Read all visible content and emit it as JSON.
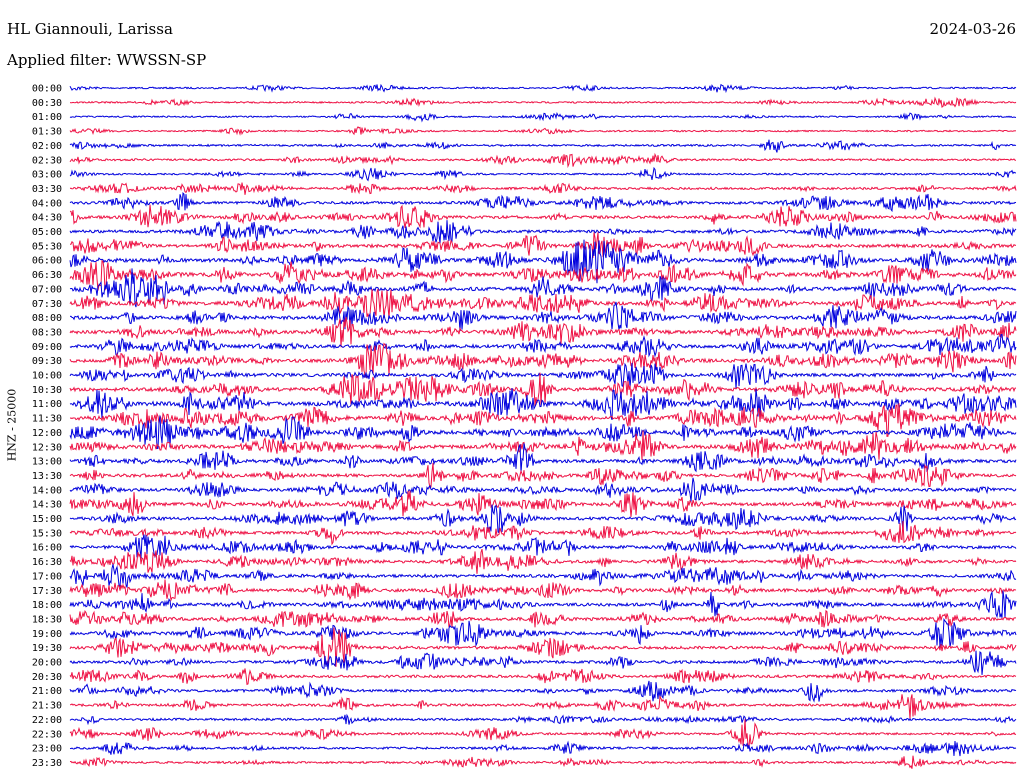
{
  "header": {
    "station": "HL Giannouli, Larissa",
    "date": "2024-03-26",
    "filter_label": "Applied filter: WWSSN-SP"
  },
  "colors": {
    "series_a": "#0000dd",
    "series_b": "#ee1144"
  },
  "chart_data": {
    "type": "line",
    "title": "HL Giannouli, Larissa",
    "ylabel": "HNZ - 25000",
    "row_labels": [
      "00:00",
      "00:30",
      "01:00",
      "01:30",
      "02:00",
      "02:30",
      "03:00",
      "03:30",
      "04:00",
      "04:30",
      "05:00",
      "05:30",
      "06:00",
      "06:30",
      "07:00",
      "07:30",
      "08:00",
      "08:30",
      "09:00",
      "09:30",
      "10:00",
      "10:30",
      "11:00",
      "11:30",
      "12:00",
      "12:30",
      "13:00",
      "13:30",
      "14:00",
      "14:30",
      "15:00",
      "15:30",
      "16:00",
      "16:30",
      "17:00",
      "17:30",
      "18:00",
      "18:30",
      "19:00",
      "19:30",
      "20:00",
      "20:30",
      "21:00",
      "21:30",
      "22:00",
      "22:30",
      "23:00",
      "23:30"
    ],
    "row_activity": [
      0.1,
      0.12,
      0.1,
      0.08,
      0.2,
      0.22,
      0.15,
      0.3,
      0.45,
      0.5,
      0.5,
      0.6,
      0.75,
      0.75,
      0.7,
      0.65,
      0.7,
      0.65,
      0.65,
      0.65,
      0.6,
      0.7,
      0.85,
      0.8,
      0.75,
      0.7,
      0.6,
      0.55,
      0.55,
      0.6,
      0.55,
      0.55,
      0.55,
      0.55,
      0.6,
      0.6,
      0.55,
      0.55,
      0.55,
      0.5,
      0.45,
      0.4,
      0.4,
      0.35,
      0.3,
      0.3,
      0.3,
      0.25
    ]
  }
}
